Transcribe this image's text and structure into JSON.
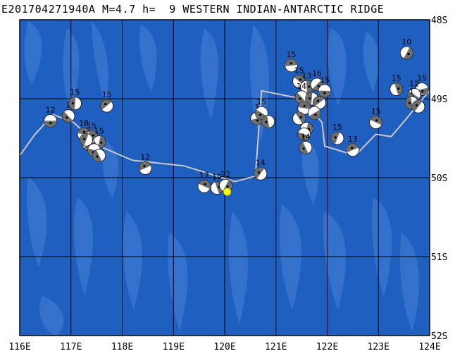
{
  "header": {
    "event_id": "E201704271940A",
    "magnitude": "M=4.7",
    "depth_label": "h=",
    "depth_value": "9",
    "region": "WESTERN INDIAN-ANTARCTIC RIDGE"
  },
  "map": {
    "lon_range": [
      116,
      124
    ],
    "lat_range": [
      -52,
      -48
    ],
    "lon_ticks": [
      "116E",
      "117E",
      "118E",
      "119E",
      "120E",
      "121E",
      "122E",
      "123E",
      "124E"
    ],
    "lat_ticks": [
      "48S",
      "49S",
      "50S",
      "51S",
      "52S"
    ],
    "colors": {
      "ocean": "#1f5fc0",
      "relief": "#3b78d2",
      "grid": "#000000",
      "ridge": "#c8c8c8",
      "current_event": "#ffff00"
    }
  },
  "ridge_line": [
    [
      116.0,
      -49.72
    ],
    [
      116.3,
      -49.45
    ],
    [
      116.65,
      -49.2
    ],
    [
      117.05,
      -49.3
    ],
    [
      117.55,
      -49.6
    ],
    [
      118.2,
      -49.78
    ],
    [
      119.2,
      -49.85
    ],
    [
      120.2,
      -50.05
    ],
    [
      120.6,
      -49.98
    ],
    [
      120.72,
      -48.9
    ],
    [
      121.5,
      -49.0
    ],
    [
      121.9,
      -49.3
    ],
    [
      121.95,
      -49.6
    ],
    [
      122.55,
      -49.72
    ],
    [
      122.95,
      -49.45
    ],
    [
      123.25,
      -49.48
    ],
    [
      123.55,
      -49.25
    ],
    [
      123.8,
      -49.05
    ],
    [
      124.0,
      -48.9
    ]
  ],
  "events": [
    {
      "lon": 116.6,
      "lat": -49.28,
      "label": "12"
    },
    {
      "lon": 116.95,
      "lat": -49.22,
      "label": "1"
    },
    {
      "lon": 117.08,
      "lat": -49.06,
      "label": "15"
    },
    {
      "lon": 117.7,
      "lat": -49.09,
      "label": "15"
    },
    {
      "lon": 117.25,
      "lat": -49.45,
      "label": "18"
    },
    {
      "lon": 117.4,
      "lat": -49.48,
      "label": "15"
    },
    {
      "lon": 117.55,
      "lat": -49.55,
      "label": "15"
    },
    {
      "lon": 117.35,
      "lat": -49.58,
      "label": ""
    },
    {
      "lon": 117.45,
      "lat": -49.65,
      "label": ""
    },
    {
      "lon": 117.55,
      "lat": -49.72,
      "label": ""
    },
    {
      "lon": 117.3,
      "lat": -49.52,
      "label": ""
    },
    {
      "lon": 118.45,
      "lat": -49.88,
      "label": "12"
    },
    {
      "lon": 119.6,
      "lat": -50.11,
      "label": "17"
    },
    {
      "lon": 119.85,
      "lat": -50.13,
      "label": "19"
    },
    {
      "lon": 120.02,
      "lat": -50.1,
      "label": "22"
    },
    {
      "lon": 120.63,
      "lat": -49.25,
      "label": "1"
    },
    {
      "lon": 120.72,
      "lat": -49.18,
      "label": "15"
    },
    {
      "lon": 120.85,
      "lat": -49.29,
      "label": ""
    },
    {
      "lon": 120.7,
      "lat": -49.95,
      "label": "14"
    },
    {
      "lon": 121.3,
      "lat": -48.58,
      "label": "15"
    },
    {
      "lon": 121.45,
      "lat": -48.78,
      "label": "15"
    },
    {
      "lon": 121.6,
      "lat": -48.85,
      "label": "13"
    },
    {
      "lon": 121.8,
      "lat": -48.82,
      "label": "16"
    },
    {
      "lon": 121.95,
      "lat": -48.9,
      "label": "15"
    },
    {
      "lon": 121.5,
      "lat": -48.98,
      "label": "14"
    },
    {
      "lon": 121.7,
      "lat": -49.0,
      "label": ""
    },
    {
      "lon": 121.85,
      "lat": -49.05,
      "label": ""
    },
    {
      "lon": 121.55,
      "lat": -49.12,
      "label": ""
    },
    {
      "lon": 121.45,
      "lat": -49.25,
      "label": ""
    },
    {
      "lon": 121.6,
      "lat": -49.38,
      "label": ""
    },
    {
      "lon": 121.75,
      "lat": -49.18,
      "label": ""
    },
    {
      "lon": 121.55,
      "lat": -49.45,
      "label": ""
    },
    {
      "lon": 121.58,
      "lat": -49.62,
      "label": "14"
    },
    {
      "lon": 122.2,
      "lat": -49.5,
      "label": "15"
    },
    {
      "lon": 122.5,
      "lat": -49.65,
      "label": "13"
    },
    {
      "lon": 122.95,
      "lat": -49.3,
      "label": "15"
    },
    {
      "lon": 123.35,
      "lat": -48.88,
      "label": "15"
    },
    {
      "lon": 123.55,
      "lat": -48.42,
      "label": "10"
    },
    {
      "lon": 123.85,
      "lat": -48.88,
      "label": "15"
    },
    {
      "lon": 123.7,
      "lat": -48.95,
      "label": "12"
    },
    {
      "lon": 123.65,
      "lat": -49.05,
      "label": "1"
    },
    {
      "lon": 123.78,
      "lat": -49.1,
      "label": ""
    }
  ],
  "current_event": {
    "lon": 120.05,
    "lat": -50.18
  }
}
